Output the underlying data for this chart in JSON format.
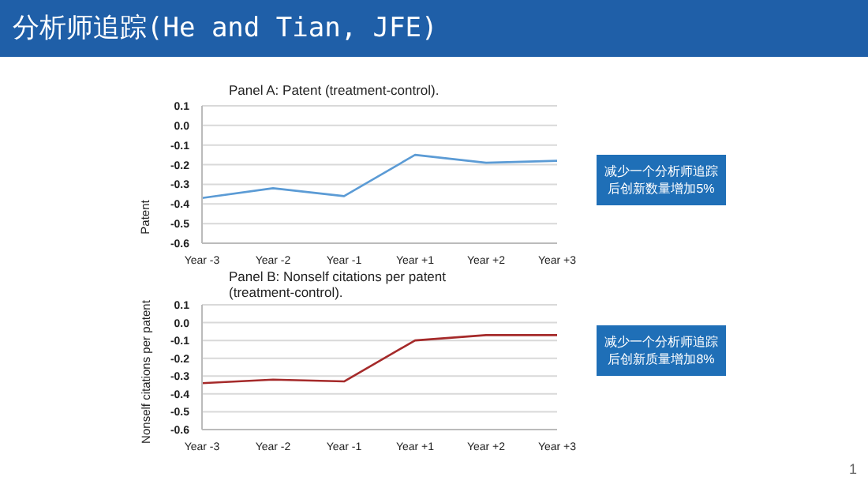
{
  "chart_data": [
    {
      "type": "line",
      "title": "Panel A: Patent (treatment-control).",
      "ylabel": "Patent",
      "categories": [
        "Year -3",
        "Year -2",
        "Year -1",
        "Year +1",
        "Year +2",
        "Year +3"
      ],
      "series": [
        {
          "color": "#5b9bd5",
          "values": [
            -0.37,
            -0.32,
            -0.36,
            -0.15,
            -0.19,
            -0.18
          ]
        }
      ],
      "ylim": [
        -0.6,
        0.1
      ],
      "yticks": [
        -0.6,
        -0.5,
        -0.4,
        -0.3,
        -0.2,
        -0.1,
        {
          "value": 0,
          "label": "0.0"
        },
        0.1
      ],
      "grid": "y",
      "legend": false,
      "marker": "none",
      "line_style": "solid",
      "annotations": [
        "分析师追踪(He and Tian, JFE)",
        "减少一个分析师追踪后创新数量增加5%"
      ]
    },
    {
      "type": "line",
      "title": "Panel B: Nonself citations per patent (treatment-control).",
      "ylabel": "Nonself citations per patent",
      "categories": [
        "Year -3",
        "Year -2",
        "Year -1",
        "Year +1",
        "Year +2",
        "Year +3"
      ],
      "series": [
        {
          "color": "#a52a2a",
          "values": [
            -0.34,
            -0.32,
            -0.33,
            -0.1,
            -0.07,
            -0.07
          ]
        }
      ],
      "ylim": [
        -0.6,
        0.1
      ],
      "yticks": [
        -0.6,
        -0.5,
        -0.4,
        -0.3,
        -0.2,
        -0.1,
        {
          "value": 0,
          "label": "0.0"
        },
        0.1
      ],
      "grid": "y",
      "legend": false,
      "marker": "none",
      "line_style": "solid",
      "annotations": [
        "减少一个分析师追踪后创新质量增加8%",
        "1"
      ]
    }
  ]
}
